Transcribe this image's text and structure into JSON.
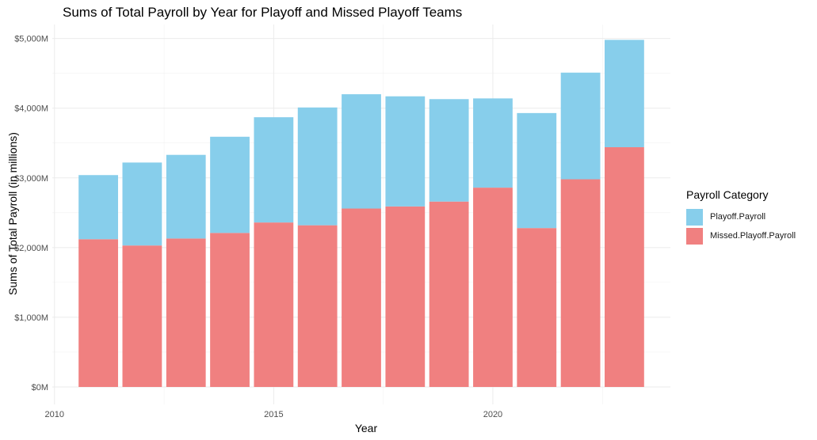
{
  "chart_data": {
    "type": "bar",
    "stacked": true,
    "title": "Sums of Total Payroll by Year for Playoff and Missed Playoff Teams",
    "xlabel": "Year",
    "ylabel": "Sums of Total Payroll (in millions)",
    "x": [
      2011,
      2012,
      2013,
      2014,
      2015,
      2016,
      2017,
      2018,
      2019,
      2020,
      2021,
      2022,
      2023
    ],
    "xlim": [
      2009.95,
      2024.05
    ],
    "ylim": [
      -250,
      5200
    ],
    "x_ticks": [
      2010,
      2015,
      2020
    ],
    "x_tick_labels": [
      "2010",
      "2015",
      "2020"
    ],
    "y_ticks": [
      0,
      1000,
      2000,
      3000,
      4000,
      5000
    ],
    "y_tick_labels": [
      "$0M",
      "$1,000M",
      "$2,000M",
      "$3,000M",
      "$4,000M",
      "$5,000M"
    ],
    "grid": true,
    "legend_position": "right",
    "legend_title": "Payroll Category",
    "series": [
      {
        "name": "Playoff.Payroll",
        "color": "#87CEEB",
        "values": [
          920,
          1190,
          1200,
          1380,
          1510,
          1690,
          1640,
          1580,
          1470,
          1280,
          1650,
          1530,
          1540
        ]
      },
      {
        "name": "Missed.Playoff.Payroll",
        "color": "#F08080",
        "values": [
          2120,
          2030,
          2130,
          2210,
          2360,
          2320,
          2560,
          2590,
          2660,
          2860,
          2280,
          2980,
          3440
        ]
      }
    ]
  }
}
